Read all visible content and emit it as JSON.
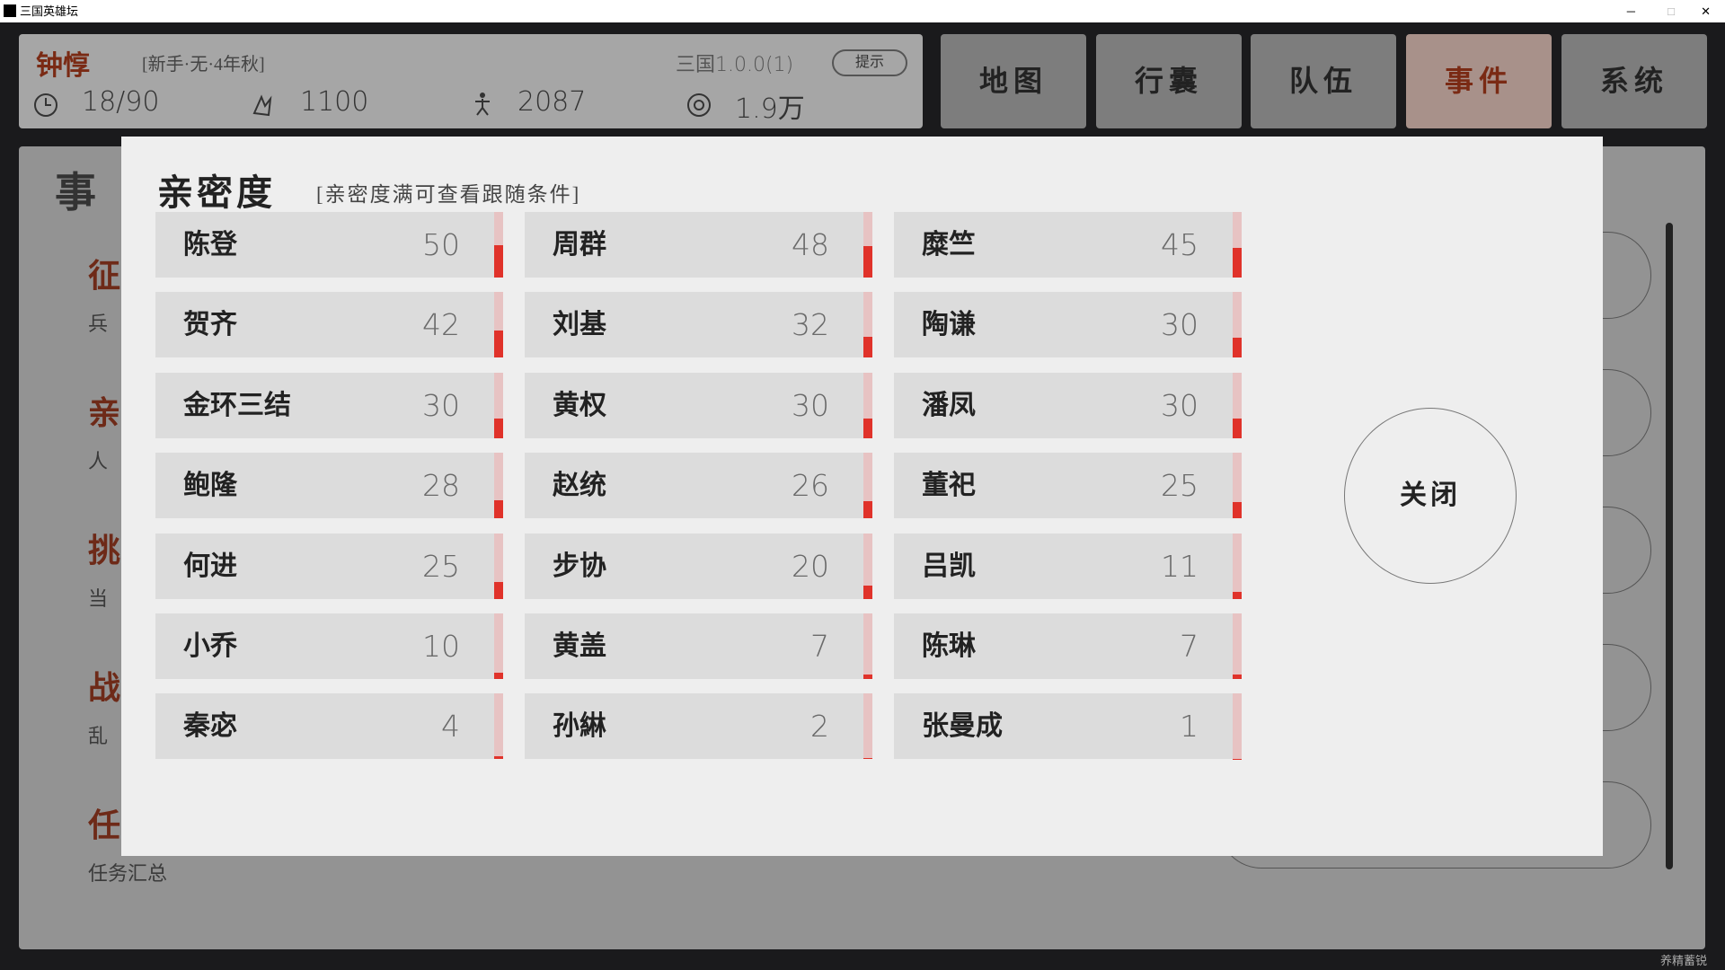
{
  "window": {
    "title": "三国英雄坛"
  },
  "header": {
    "name": "钟惇",
    "tag": "[新手·无·4年秋]",
    "version": "三国1.0.0(1)",
    "hint_button": "提示",
    "stats": [
      "18/90",
      "1100",
      "2087",
      "1.9万"
    ]
  },
  "nav": [
    "地图",
    "行囊",
    "队伍",
    "事件",
    "系统"
  ],
  "background_panel": {
    "title": "事",
    "sections": [
      {
        "heading": "征",
        "sub": "兵"
      },
      {
        "heading": "亲",
        "sub": "人"
      },
      {
        "heading": "挑",
        "sub": "当"
      },
      {
        "heading": "战",
        "sub": "乱"
      },
      {
        "heading": "任",
        "sub": "任务汇总"
      }
    ]
  },
  "affinity": {
    "title": "亲密度",
    "subtitle": "[亲密度满可查看跟随条件]",
    "bar_range": [
      0,
      100
    ],
    "entries": [
      {
        "name": "陈登",
        "value": 50
      },
      {
        "name": "周群",
        "value": 48
      },
      {
        "name": "糜竺",
        "value": 45
      },
      {
        "name": "贺齐",
        "value": 42
      },
      {
        "name": "刘基",
        "value": 32
      },
      {
        "name": "陶谦",
        "value": 30
      },
      {
        "name": "金环三结",
        "value": 30
      },
      {
        "name": "黄权",
        "value": 30
      },
      {
        "name": "潘凤",
        "value": 30
      },
      {
        "name": "鲍隆",
        "value": 28
      },
      {
        "name": "赵统",
        "value": 26
      },
      {
        "name": "董祀",
        "value": 25
      },
      {
        "name": "何进",
        "value": 25
      },
      {
        "name": "步协",
        "value": 20
      },
      {
        "name": "吕凯",
        "value": 11
      },
      {
        "name": "小乔",
        "value": 10
      },
      {
        "name": "黄盖",
        "value": 7
      },
      {
        "name": "陈琳",
        "value": 7
      },
      {
        "name": "秦宓",
        "value": 4
      },
      {
        "name": "孙綝",
        "value": 2
      },
      {
        "name": "张曼成",
        "value": 1
      }
    ],
    "close_button": "关闭"
  },
  "footer": {
    "watermark": "养精蓄锐"
  }
}
